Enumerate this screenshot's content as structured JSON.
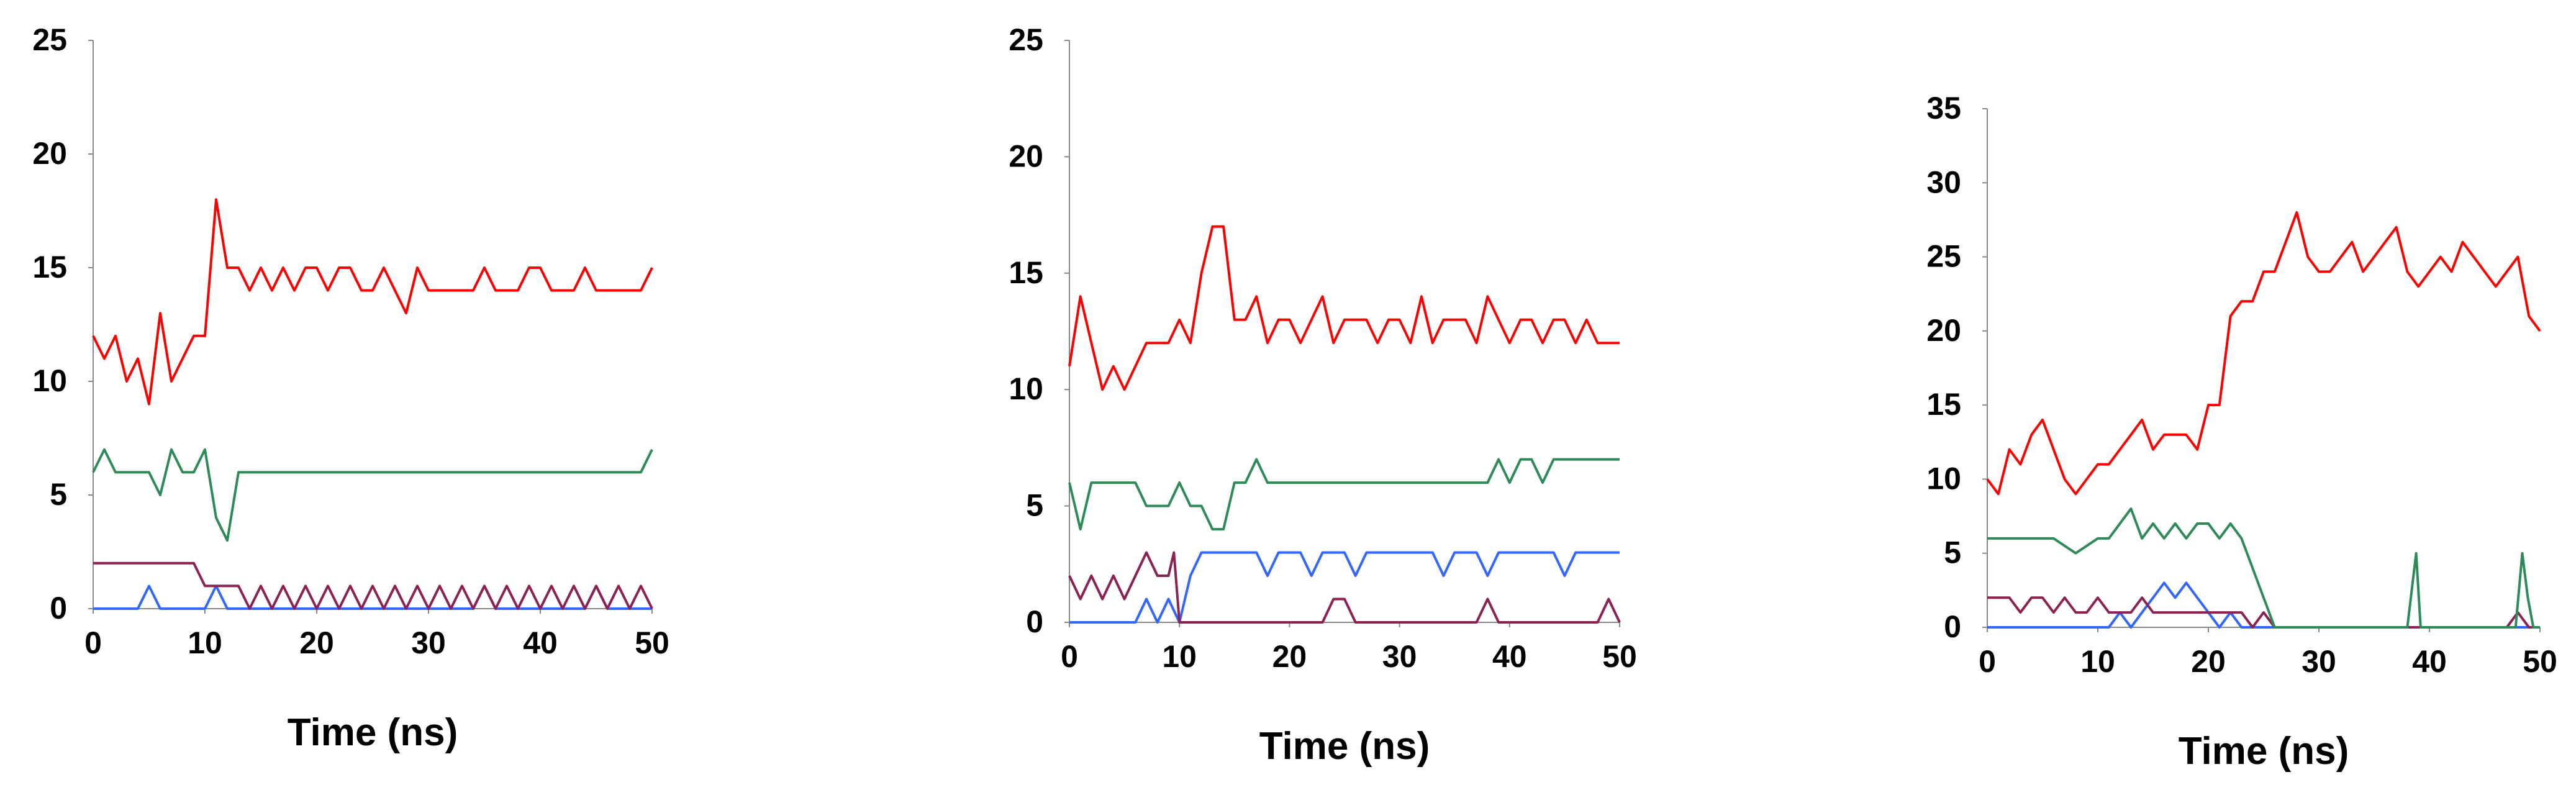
{
  "colors": {
    "red": "#ff0000",
    "green": "#2e8b57",
    "blue": "#3366ff",
    "purple": "#8b2252",
    "axis": "#888888",
    "text": "#000000"
  },
  "chart_data": [
    {
      "type": "line",
      "xlabel": "Time (ns)",
      "ylabel": "",
      "xlim": [
        0,
        50
      ],
      "ylim": [
        0,
        25
      ],
      "xticks": [
        "0",
        "10",
        "20",
        "30",
        "40",
        "50"
      ],
      "yticks": [
        "0",
        "5",
        "10",
        "15",
        "20",
        "25"
      ],
      "grid": false,
      "series": [
        {
          "color": "#ff0000",
          "x": [
            0,
            1,
            2,
            3,
            4,
            5,
            6,
            7,
            8,
            9,
            10,
            11,
            12,
            13,
            14,
            15,
            16,
            17,
            18,
            19,
            20,
            21,
            22,
            23,
            24,
            25,
            26,
            27,
            28,
            29,
            30,
            31,
            32,
            33,
            34,
            35,
            36,
            37,
            38,
            39,
            40,
            41,
            42,
            43,
            44,
            45,
            46,
            47,
            48,
            49,
            50
          ],
          "values": [
            12,
            11,
            12,
            10,
            11,
            9,
            13,
            10,
            11,
            12,
            12,
            18,
            15,
            15,
            14,
            15,
            14,
            15,
            14,
            15,
            15,
            14,
            15,
            15,
            14,
            14,
            15,
            14,
            13,
            15,
            14,
            14,
            14,
            14,
            14,
            15,
            14,
            14,
            14,
            15,
            15,
            14,
            14,
            14,
            15,
            14,
            14,
            14,
            14,
            14,
            15
          ]
        },
        {
          "color": "#2e8b57",
          "x": [
            0,
            1,
            2,
            3,
            4,
            5,
            6,
            7,
            8,
            9,
            10,
            11,
            12,
            13,
            14,
            15,
            16,
            17,
            18,
            19,
            20,
            21,
            22,
            23,
            24,
            25,
            26,
            27,
            28,
            29,
            30,
            31,
            32,
            33,
            34,
            35,
            36,
            37,
            38,
            39,
            40,
            41,
            42,
            43,
            44,
            45,
            46,
            47,
            48,
            49,
            50
          ],
          "values": [
            6,
            7,
            6,
            6,
            6,
            6,
            5,
            7,
            6,
            6,
            7,
            4,
            3,
            6,
            6,
            6,
            6,
            6,
            6,
            6,
            6,
            6,
            6,
            6,
            6,
            6,
            6,
            6,
            6,
            6,
            6,
            6,
            6,
            6,
            6,
            6,
            6,
            6,
            6,
            6,
            6,
            6,
            6,
            6,
            6,
            6,
            6,
            6,
            6,
            6,
            7
          ]
        },
        {
          "color": "#8b2252",
          "x": [
            0,
            1,
            2,
            3,
            4,
            5,
            6,
            7,
            8,
            9,
            10,
            11,
            12,
            13,
            14,
            15,
            16,
            17,
            18,
            19,
            20,
            21,
            22,
            23,
            24,
            25,
            26,
            27,
            28,
            29,
            30,
            31,
            32,
            33,
            34,
            35,
            36,
            37,
            38,
            39,
            40,
            41,
            42,
            43,
            44,
            45,
            46,
            47,
            48,
            49,
            50
          ],
          "values": [
            2,
            2,
            2,
            2,
            2,
            2,
            2,
            2,
            2,
            2,
            1,
            1,
            1,
            1,
            0,
            1,
            0,
            1,
            0,
            1,
            0,
            1,
            0,
            1,
            0,
            1,
            0,
            1,
            0,
            1,
            0,
            1,
            0,
            1,
            0,
            1,
            0,
            1,
            0,
            1,
            0,
            1,
            0,
            1,
            0,
            1,
            0,
            1,
            0,
            1,
            0
          ]
        },
        {
          "color": "#3366ff",
          "x": [
            0,
            2,
            4,
            5,
            6,
            8,
            10,
            11,
            12,
            14,
            20,
            30,
            34,
            35,
            36,
            40,
            44,
            45,
            46,
            50
          ],
          "values": [
            0,
            0,
            0,
            1,
            0,
            0,
            0,
            1,
            0,
            0,
            0,
            0,
            0,
            1,
            0,
            0,
            0,
            1,
            0,
            0
          ]
        }
      ]
    },
    {
      "type": "line",
      "xlabel": "Time (ns)",
      "ylabel": "",
      "xlim": [
        0,
        50
      ],
      "ylim": [
        0,
        25
      ],
      "xticks": [
        "0",
        "10",
        "20",
        "30",
        "40",
        "50"
      ],
      "yticks": [
        "0",
        "5",
        "10",
        "15",
        "20",
        "25"
      ],
      "grid": false,
      "series": [
        {
          "color": "#ff0000",
          "x": [
            0,
            1,
            2,
            3,
            4,
            5,
            6,
            7,
            8,
            9,
            10,
            11,
            12,
            13,
            14,
            15,
            16,
            17,
            18,
            19,
            20,
            21,
            22,
            23,
            24,
            25,
            26,
            27,
            28,
            29,
            30,
            31,
            32,
            33,
            34,
            35,
            36,
            37,
            38,
            39,
            40,
            41,
            42,
            43,
            44,
            45,
            46,
            47,
            48,
            49,
            50
          ],
          "values": [
            11,
            14,
            12,
            10,
            11,
            10,
            11,
            12,
            12,
            12,
            13,
            12,
            15,
            17,
            17,
            13,
            13,
            14,
            12,
            13,
            13,
            12,
            13,
            14,
            12,
            13,
            13,
            13,
            12,
            13,
            13,
            12,
            14,
            12,
            13,
            13,
            13,
            12,
            14,
            13,
            12,
            13,
            13,
            12,
            13,
            13,
            12,
            13,
            12,
            12,
            12
          ]
        },
        {
          "color": "#2e8b57",
          "x": [
            0,
            1,
            2,
            3,
            4,
            5,
            6,
            7,
            8,
            9,
            10,
            11,
            12,
            13,
            14,
            15,
            16,
            17,
            18,
            19,
            20,
            21,
            22,
            23,
            24,
            25,
            26,
            27,
            28,
            29,
            30,
            31,
            32,
            33,
            34,
            35,
            36,
            37,
            38,
            39,
            40,
            41,
            42,
            43,
            44,
            45,
            46,
            47,
            48,
            49,
            50
          ],
          "values": [
            6,
            4,
            6,
            6,
            6,
            6,
            6,
            5,
            5,
            5,
            6,
            5,
            5,
            4,
            4,
            6,
            6,
            7,
            6,
            6,
            6,
            6,
            6,
            6,
            6,
            6,
            6,
            6,
            6,
            6,
            6,
            6,
            6,
            6,
            6,
            6,
            6,
            6,
            6,
            7,
            6,
            7,
            7,
            6,
            7,
            7,
            7,
            7,
            7,
            7,
            7
          ]
        },
        {
          "color": "#8b2252",
          "x": [
            0,
            1,
            2,
            3,
            4,
            5,
            6,
            7,
            8,
            9,
            9.5,
            10,
            11,
            12,
            20,
            23,
            24,
            25,
            26,
            37,
            38,
            39,
            40,
            48,
            49,
            50
          ],
          "values": [
            2,
            1,
            2,
            1,
            2,
            1,
            2,
            3,
            2,
            2,
            3,
            0,
            0,
            0,
            0,
            0,
            1,
            1,
            0,
            0,
            1,
            0,
            0,
            0,
            1,
            0
          ]
        },
        {
          "color": "#3366ff",
          "x": [
            0,
            2,
            4,
            6,
            7,
            8,
            9,
            10,
            11,
            12,
            13,
            14,
            15,
            16,
            17,
            18,
            19,
            20,
            21,
            22,
            23,
            24,
            25,
            26,
            27,
            28,
            29,
            30,
            31,
            32,
            33,
            34,
            35,
            36,
            37,
            38,
            39,
            40,
            41,
            42,
            43,
            44,
            45,
            46,
            47,
            48,
            49,
            50
          ],
          "values": [
            0,
            0,
            0,
            0,
            1,
            0,
            1,
            0,
            2,
            3,
            3,
            3,
            3,
            3,
            3,
            2,
            3,
            3,
            3,
            2,
            3,
            3,
            3,
            2,
            3,
            3,
            3,
            3,
            3,
            3,
            3,
            2,
            3,
            3,
            3,
            2,
            3,
            3,
            3,
            3,
            3,
            3,
            2,
            3,
            3,
            3,
            3,
            3
          ]
        }
      ]
    },
    {
      "type": "line",
      "xlabel": "Time (ns)",
      "ylabel": "",
      "xlim": [
        0,
        50
      ],
      "ylim": [
        0,
        35
      ],
      "xticks": [
        "0",
        "10",
        "20",
        "30",
        "40",
        "50"
      ],
      "yticks": [
        "0",
        "5",
        "10",
        "15",
        "20",
        "25",
        "30",
        "35"
      ],
      "grid": false,
      "series": [
        {
          "color": "#ff0000",
          "x": [
            0,
            1,
            2,
            3,
            4,
            5,
            6,
            7,
            8,
            9,
            10,
            11,
            12,
            13,
            14,
            15,
            16,
            17,
            18,
            19,
            20,
            21,
            22,
            23,
            24,
            25,
            26,
            27,
            28,
            29,
            30,
            31,
            32,
            33,
            34,
            35,
            36,
            37,
            38,
            39,
            40,
            41,
            42,
            43,
            44,
            45,
            46,
            47,
            48,
            49,
            50
          ],
          "values": [
            10,
            9,
            12,
            11,
            13,
            14,
            12,
            10,
            9,
            10,
            11,
            11,
            12,
            13,
            14,
            12,
            13,
            13,
            13,
            12,
            15,
            15,
            21,
            22,
            22,
            24,
            24,
            26,
            28,
            25,
            24,
            24,
            25,
            26,
            24,
            25,
            26,
            27,
            24,
            23,
            24,
            25,
            24,
            26,
            25,
            24,
            23,
            24,
            25,
            21,
            20
          ]
        },
        {
          "color": "#2e8b57",
          "x": [
            0,
            2,
            4,
            6,
            8,
            10,
            11,
            12,
            13,
            14,
            15,
            16,
            17,
            18,
            19,
            20,
            21,
            22,
            23,
            24,
            25,
            26,
            27,
            30,
            38,
            38.8,
            39.2,
            40,
            47.8,
            48.4,
            48.9,
            49.4,
            50
          ],
          "values": [
            6,
            6,
            6,
            6,
            5,
            6,
            6,
            7,
            8,
            6,
            7,
            6,
            7,
            6,
            7,
            7,
            6,
            7,
            6,
            4,
            2,
            0,
            0,
            0,
            0,
            5,
            0,
            0,
            0,
            5,
            2,
            0,
            0
          ]
        },
        {
          "color": "#8b2252",
          "x": [
            0,
            2,
            3,
            4,
            5,
            6,
            7,
            8,
            9,
            10,
            11,
            12,
            13,
            14,
            15,
            16,
            17,
            18,
            19,
            20,
            21,
            22,
            23,
            24,
            25,
            26,
            38,
            39,
            40,
            47,
            48,
            49,
            50
          ],
          "values": [
            2,
            2,
            1,
            2,
            2,
            1,
            2,
            1,
            1,
            2,
            1,
            1,
            1,
            2,
            1,
            1,
            1,
            1,
            1,
            1,
            1,
            1,
            1,
            0,
            1,
            0,
            0,
            0,
            0,
            0,
            1,
            0,
            0
          ]
        },
        {
          "color": "#3366ff",
          "x": [
            0,
            4,
            8,
            10,
            11,
            12,
            13,
            14,
            15,
            16,
            17,
            18,
            19,
            20,
            21,
            22,
            23,
            24,
            25,
            26,
            30,
            40,
            50
          ],
          "values": [
            0,
            0,
            0,
            0,
            0,
            1,
            0,
            1,
            2,
            3,
            2,
            3,
            2,
            1,
            0,
            1,
            0,
            0,
            0,
            0,
            0,
            0,
            0
          ]
        }
      ]
    }
  ]
}
